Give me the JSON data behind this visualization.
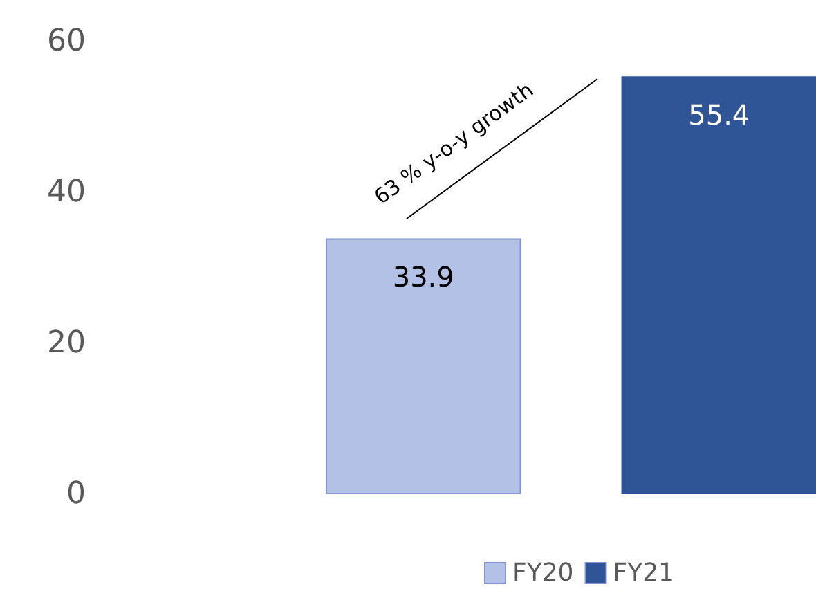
{
  "chart_data": {
    "type": "bar",
    "categories": [
      null
    ],
    "series": [
      {
        "name": "FY20",
        "color": "#b4c1e6",
        "values": [
          33.9
        ]
      },
      {
        "name": "FY21",
        "color": "#2f5597",
        "values": [
          55.4
        ]
      }
    ],
    "ylim": [
      0,
      60
    ],
    "yticks": [
      0,
      20,
      40,
      60
    ],
    "grid": false,
    "legend": "bottom",
    "data_labels": true,
    "annotations": [
      "63 % y-o-y growth"
    ]
  }
}
